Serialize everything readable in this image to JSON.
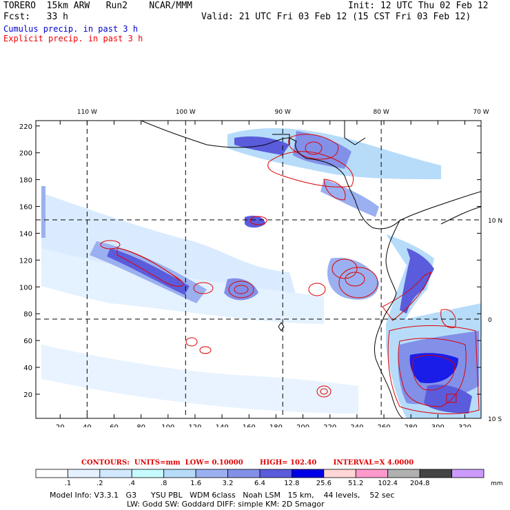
{
  "header": {
    "model": "TORERO",
    "resolution": "15km ARW",
    "run": "Run2",
    "org": "NCAR/MMM",
    "init": "Init: 12 UTC Thu 02 Feb 12",
    "fcst_label": "Fcst:",
    "fcst_value": "33 h",
    "valid": "Valid: 21 UTC Fri 03 Feb 12 (15 CST Fri 03 Feb 12)"
  },
  "legend": {
    "cumulus": "Cumulus precip. in past 3 h",
    "explicit": "Explicit precip. in past 3 h"
  },
  "map": {
    "top_lon_labels": [
      "110 W",
      "100 W",
      "90 W",
      "80 W",
      "70 W"
    ],
    "right_lat_labels": [
      "10 N",
      "0",
      "10 S"
    ],
    "x_ticks": [
      "20",
      "40",
      "60",
      "80",
      "100",
      "120",
      "140",
      "160",
      "180",
      "200",
      "220",
      "240",
      "260",
      "280",
      "300",
      "320"
    ],
    "y_ticks": [
      "20",
      "40",
      "60",
      "80",
      "100",
      "120",
      "140",
      "160",
      "180",
      "200",
      "220"
    ],
    "x_range": [
      2,
      332
    ],
    "y_range": [
      2,
      224
    ],
    "grid_x": [
      40,
      113,
      185,
      258
    ],
    "grid_y": [
      76,
      150
    ]
  },
  "contours": {
    "label": "CONTOURS:",
    "units": "UNITS=mm",
    "low": "LOW= 0.10000",
    "high": "HIGH= 102.40",
    "interval": "INTERVAL=X 4.0000"
  },
  "colorbar": {
    "labels": [
      ".1",
      ".2",
      ".4",
      ".8",
      "1.6",
      "3.2",
      "6.4",
      "12.8",
      "25.6",
      "51.2",
      "102.4",
      "204.8"
    ],
    "unit": "mm",
    "colors": [
      "#ffffff",
      "#e6f1ff",
      "#d2e8ff",
      "#c6fbff",
      "#b6dcfa",
      "#9bb0f0",
      "#8290e8",
      "#5b5cdc",
      "#0000e6",
      "#ffd6d6",
      "#ff99cc",
      "#b0b0b0",
      "#444444",
      "#cc99ff"
    ]
  },
  "model_info": {
    "line1": "Model Info: V3.3.1   G3      YSU PBL   WDM 6class   Noah LSM   15 km,    44 levels,    52 sec",
    "line2": "LW: Godd SW: Goddard DIFF: simple KM: 2D Smagor"
  }
}
